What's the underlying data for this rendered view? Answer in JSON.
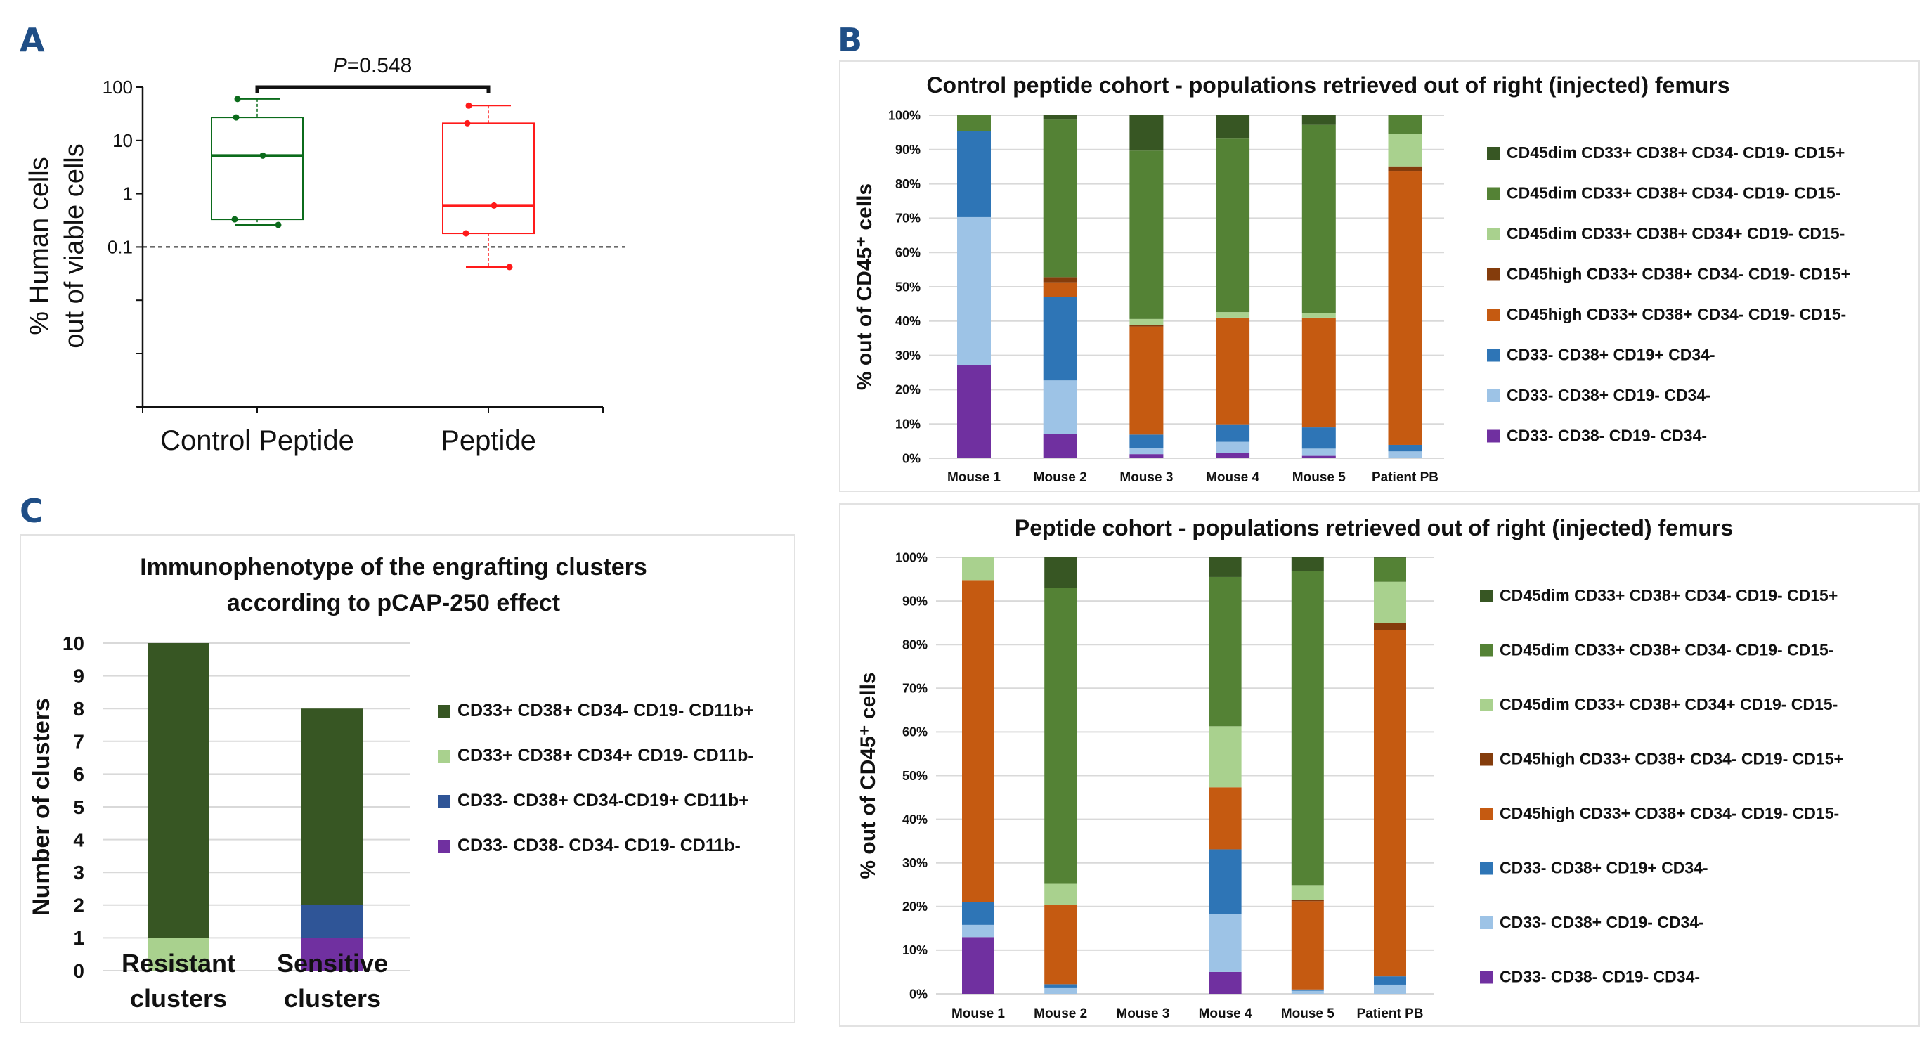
{
  "panels": {
    "a": {
      "letter": "A"
    },
    "b": {
      "letter": "B"
    },
    "c": {
      "letter": "C"
    }
  },
  "colors": {
    "dark_green": "#375623",
    "green": "#548235",
    "light_green": "#a9d18e",
    "brown": "#843c0c",
    "orange": "#c55a11",
    "blue": "#2e75b6",
    "light_blue": "#9dc3e6",
    "purple": "#7030a0",
    "navy": "#2f5597",
    "box_control": "#0b6b1b",
    "box_peptide": "#ff1a1a",
    "letter": "#1f4e86"
  },
  "chart_data": [
    {
      "id": "panel-a",
      "type": "box",
      "title": "",
      "ylabel": [
        "% Human cells",
        "out of viable cells"
      ],
      "yscale": "log",
      "ylim": [
        0.0001,
        100
      ],
      "yticks": [
        {
          "value": 100,
          "label": "100"
        },
        {
          "value": 10,
          "label": "10"
        },
        {
          "value": 1,
          "label": "1"
        },
        {
          "value": 0.1,
          "label": "0.1"
        },
        {
          "value": 0.01,
          "label": ""
        },
        {
          "value": 0.001,
          "label": ""
        },
        {
          "value": 0.0001,
          "label": ""
        }
      ],
      "threshold_line": 0.1,
      "annotation": {
        "p_label": "P",
        "p_value": "=0.548"
      },
      "groups": [
        {
          "name": "Control Peptide",
          "color": "#0b6b1b",
          "q1": 0.33,
          "median": 5.2,
          "q3": 27,
          "whisker_low": 0.26,
          "whisker_high": 60,
          "points": [
            60,
            27,
            5.2,
            0.33,
            0.26
          ]
        },
        {
          "name": "Peptide",
          "color": "#ff1a1a",
          "q1": 0.18,
          "median": 0.6,
          "q3": 21,
          "whisker_low": 0.042,
          "whisker_high": 45,
          "points": [
            45,
            21,
            0.6,
            0.18,
            0.042
          ]
        }
      ]
    },
    {
      "id": "panel-b-control",
      "type": "bar",
      "stacked": true,
      "title": "Control peptide cohort - populations retrieved out of right (injected) femurs",
      "ylabel": "% out of CD45⁺ cells",
      "ylim": [
        0,
        100
      ],
      "yticks": [
        "0%",
        "10%",
        "20%",
        "30%",
        "40%",
        "50%",
        "60%",
        "70%",
        "80%",
        "90%",
        "100%"
      ],
      "grid": true,
      "legend": "right",
      "categories": [
        "Mouse 1",
        "Mouse 2",
        "Mouse 3",
        "Mouse 4",
        "Mouse 5",
        "Patient PB"
      ],
      "series": [
        {
          "name": "CD33- CD38- CD19- CD34-",
          "color": "#7030a0",
          "values": [
            27.2,
            7.0,
            1.2,
            1.5,
            0.7,
            0
          ]
        },
        {
          "name": "CD33- CD38+ CD19- CD34-",
          "color": "#9dc3e6",
          "values": [
            43.1,
            15.7,
            1.7,
            3.3,
            2.1,
            2.0
          ]
        },
        {
          "name": "CD33- CD38+ CD19+ CD34-",
          "color": "#2e75b6",
          "values": [
            25.1,
            24.3,
            4.0,
            5.1,
            6.2,
            1.9
          ]
        },
        {
          "name": "CD45high CD33+ CD38+ CD34- CD19- CD15-",
          "color": "#c55a11",
          "values": [
            0,
            4.3,
            31.5,
            31.1,
            32.0,
            79.7
          ]
        },
        {
          "name": "CD45high CD33+ CD38+ CD34- CD19- CD15+",
          "color": "#843c0c",
          "values": [
            0,
            1.5,
            0.5,
            0,
            0,
            1.5
          ]
        },
        {
          "name": "CD45dim CD33+ CD38+ CD34+ CD19- CD15-",
          "color": "#a9d18e",
          "values": [
            0,
            0,
            1.7,
            1.6,
            1.4,
            9.5
          ]
        },
        {
          "name": "CD45dim CD33+ CD38+ CD34- CD19- CD15-",
          "color": "#548235",
          "values": [
            4.6,
            45.9,
            49.1,
            50.6,
            54.8,
            5.4
          ]
        },
        {
          "name": "CD45dim CD33+ CD38+ CD34- CD19- CD15+",
          "color": "#375623",
          "values": [
            0,
            1.3,
            10.3,
            6.8,
            2.8,
            0
          ]
        }
      ]
    },
    {
      "id": "panel-b-peptide",
      "type": "bar",
      "stacked": true,
      "title": "Peptide cohort - populations retrieved out of right (injected) femurs",
      "ylabel": "% out of CD45⁺ cells",
      "ylim": [
        0,
        100
      ],
      "yticks": [
        "0%",
        "10%",
        "20%",
        "30%",
        "40%",
        "50%",
        "60%",
        "70%",
        "80%",
        "90%",
        "100%"
      ],
      "grid": true,
      "legend": "right",
      "categories": [
        "Mouse 1",
        "Mouse 2",
        "Mouse 3",
        "Mouse 4",
        "Mouse 5",
        "Patient PB"
      ],
      "series": [
        {
          "name": "CD33- CD38- CD19- CD34-",
          "color": "#7030a0",
          "values": [
            13.0,
            0,
            0,
            5.0,
            0,
            0
          ]
        },
        {
          "name": "CD33- CD38+ CD19- CD34-",
          "color": "#9dc3e6",
          "values": [
            2.8,
            1.3,
            0,
            13.2,
            0.7,
            2.1
          ]
        },
        {
          "name": "CD33- CD38+ CD19+ CD34-",
          "color": "#2e75b6",
          "values": [
            5.2,
            0.9,
            0,
            14.9,
            0.3,
            1.9
          ]
        },
        {
          "name": "CD45high CD33+ CD38+ CD34- CD19- CD15-",
          "color": "#c55a11",
          "values": [
            73.8,
            18.1,
            0,
            14.2,
            20.2,
            79.4
          ]
        },
        {
          "name": "CD45high CD33+ CD38+ CD34- CD19- CD15+",
          "color": "#843c0c",
          "values": [
            0,
            0,
            0,
            0,
            0.3,
            1.6
          ]
        },
        {
          "name": "CD45dim CD33+ CD38+ CD34+ CD19- CD15-",
          "color": "#a9d18e",
          "values": [
            5.2,
            4.9,
            0,
            14.0,
            3.4,
            9.4
          ]
        },
        {
          "name": "CD45dim CD33+ CD38+ CD34- CD19- CD15-",
          "color": "#548235",
          "values": [
            0,
            67.8,
            0,
            34.2,
            72.0,
            5.5
          ]
        },
        {
          "name": "CD45dim CD33+ CD38+ CD34- CD19- CD15+",
          "color": "#375623",
          "values": [
            0,
            7.0,
            0,
            4.5,
            3.1,
            0.1
          ]
        }
      ]
    },
    {
      "id": "panel-c",
      "type": "bar",
      "stacked": true,
      "title": [
        "Immunophenotype of the engrafting clusters",
        "according to pCAP-250 effect"
      ],
      "ylabel": "Number of clusters",
      "ylim": [
        0,
        10
      ],
      "yticks": [
        "0",
        "1",
        "2",
        "3",
        "4",
        "5",
        "6",
        "7",
        "8",
        "9",
        "10"
      ],
      "grid": true,
      "legend": "right",
      "categories": [
        [
          "Resistant",
          "clusters"
        ],
        [
          "Sensitive",
          "clusters"
        ]
      ],
      "series": [
        {
          "name": "CD33- CD38- CD34- CD19- CD11b-",
          "color": "#7030a0",
          "values": [
            0,
            1
          ]
        },
        {
          "name": "CD33-  CD38+ CD34-CD19+ CD11b+",
          "color": "#2f5597",
          "values": [
            0,
            1
          ]
        },
        {
          "name": "CD33+ CD38+ CD34+ CD19- CD11b-",
          "color": "#a9d18e",
          "values": [
            1,
            0
          ]
        },
        {
          "name": "CD33+ CD38+ CD34- CD19- CD11b+",
          "color": "#375623",
          "values": [
            9,
            6
          ]
        }
      ]
    }
  ]
}
